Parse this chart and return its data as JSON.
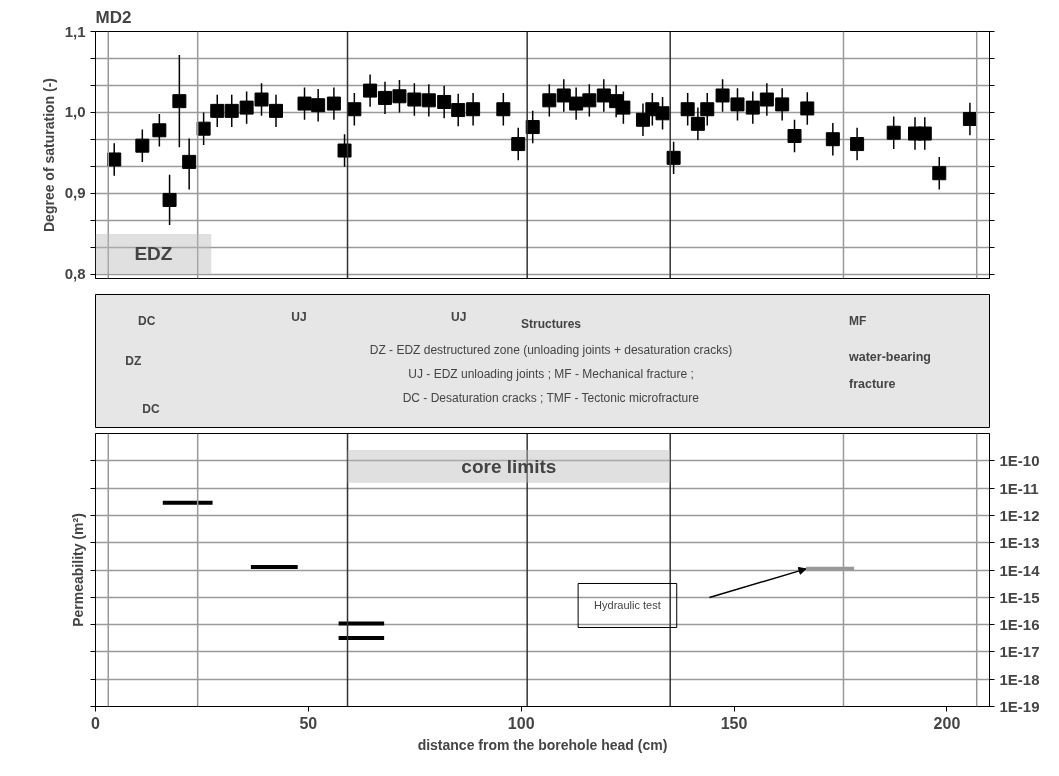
{
  "chart_data": [
    {
      "type": "scatter",
      "title": "MD2",
      "ylabel": "Degree of saturation (-)",
      "marker": "square",
      "grid": "y",
      "tick_labels": "y",
      "xlim": [
        0,
        210
      ],
      "ylim": [
        0.795,
        1.1
      ],
      "yticks": [
        {
          "value": 0.8,
          "label": "0,8"
        },
        {
          "value": 0.8333,
          "label": null
        },
        {
          "value": 0.8667,
          "label": null
        },
        {
          "value": 0.9,
          "label": "0,9"
        },
        {
          "value": 0.9333,
          "label": null
        },
        {
          "value": 0.9667,
          "label": null
        },
        {
          "value": 1.0,
          "label": "1,0"
        },
        {
          "value": 1.0333,
          "label": null
        },
        {
          "value": 1.0667,
          "label": null
        },
        {
          "value": 1.1,
          "label": "1,1"
        }
      ],
      "x": [
        4.4,
        11.0,
        15.0,
        17.4,
        19.7,
        22.0,
        25.4,
        28.6,
        32.0,
        35.5,
        39.0,
        42.4,
        49.1,
        52.3,
        56.0,
        58.5,
        60.8,
        64.5,
        68.0,
        71.4,
        74.9,
        78.3,
        81.9,
        85.2,
        88.7,
        95.8,
        99.3,
        102.7,
        106.6,
        110.0,
        112.9,
        116.0,
        119.4,
        122.3,
        124.0,
        128.6,
        130.8,
        133.2,
        135.8,
        139.1,
        141.5,
        143.7,
        147.3,
        150.8,
        154.4,
        157.7,
        161.3,
        164.2,
        167.2,
        173.2,
        178.9,
        187.5,
        192.5,
        194.8,
        198.2,
        205.4
      ],
      "series": [
        {
          "color": "#000000",
          "values": [
            0.942,
            0.959,
            0.978,
            0.892,
            1.014,
            0.939,
            0.98,
            1.002,
            1.002,
            1.006,
            1.016,
            1.002,
            1.011,
            1.009,
            1.011,
            0.953,
            1.004,
            1.027,
            1.018,
            1.02,
            1.016,
            1.015,
            1.013,
            1.003,
            1.004,
            1.004,
            0.961,
            0.982,
            1.015,
            1.021,
            1.011,
            1.015,
            1.021,
            1.014,
            1.006,
            0.991,
            1.004,
            0.999,
            0.944,
            1.004,
            0.986,
            1.004,
            1.021,
            1.01,
            1.006,
            1.016,
            1.01,
            0.971,
            1.005,
            0.967,
            0.961,
            0.975,
            0.974,
            0.974,
            0.925,
            0.992
          ],
          "errors": [
            0.02,
            0.02,
            0.02,
            0.031,
            [
              0.957,
              1.071
            ],
            [
              0.905,
              0.968
            ],
            0.02,
            0.02,
            0.02,
            0.02,
            0.02,
            0.02,
            0.02,
            0.02,
            0.02,
            0.02,
            0.02,
            0.02,
            0.02,
            0.02,
            0.02,
            0.02,
            0.02,
            0.02,
            0.02,
            0.02,
            0.02,
            0.02,
            0.02,
            0.02,
            0.02,
            0.02,
            0.02,
            0.02,
            0.02,
            0.02,
            0.02,
            0.02,
            0.02,
            0.02,
            0.02,
            0.02,
            0.02,
            0.02,
            0.02,
            0.02,
            0.02,
            0.02,
            0.02,
            0.02,
            0.02,
            0.02,
            0.02,
            0.02,
            0.02,
            0.02
          ]
        }
      ],
      "ref_lines": [
        {
          "axis": "x",
          "value": 3,
          "color": "#999999"
        },
        {
          "axis": "x",
          "value": 24,
          "color": "#999999"
        },
        {
          "axis": "x",
          "value": 59.2,
          "color": "#333333"
        },
        {
          "axis": "x",
          "value": 101.4,
          "color": "#333333"
        },
        {
          "axis": "x",
          "value": 135,
          "color": "#333333"
        },
        {
          "axis": "x",
          "value": 175.7,
          "color": "#999999"
        },
        {
          "axis": "x",
          "value": 207,
          "color": "#999999"
        }
      ],
      "bands": [
        {
          "axis": "x",
          "from": 0,
          "to": 27.2,
          "label": "EDZ"
        }
      ]
    },
    {
      "type": "other",
      "annotations": [
        "DC",
        "DZ",
        "DC",
        "UJ",
        "UJ",
        "MF",
        "Structures",
        "DZ - EDZ destructured zone (unloading joints + desaturation cracks)",
        "UJ - EDZ unloading joints ; MF - Mechanical fracture ;",
        "DC - Desaturation cracks ; TMF - Tectonic microfracture",
        "water-bearing",
        "fracture"
      ]
    },
    {
      "type": "line",
      "xlabel": "distance from the borehole head (cm)",
      "ylabel": "Permeability (m²)",
      "log": "y",
      "grid": "y",
      "xlim": [
        0,
        210
      ],
      "xticks": [
        0,
        50,
        100,
        150,
        200
      ],
      "ylim": [
        1e-19,
        1e-09
      ],
      "yticks": [
        {
          "value": 1e-10,
          "label": "1E-10"
        },
        {
          "value": 1e-11,
          "label": "1E-11"
        },
        {
          "value": 1e-12,
          "label": "1E-12"
        },
        {
          "value": 1e-13,
          "label": "1E-13"
        },
        {
          "value": 1e-14,
          "label": "1E-14"
        },
        {
          "value": 1e-15,
          "label": "1E-15"
        },
        {
          "value": 1e-16,
          "label": "1E-16"
        },
        {
          "value": 1e-17,
          "label": "1E-17"
        },
        {
          "value": 1e-18,
          "label": "1E-18"
        },
        {
          "value": 1e-19,
          "label": "1E-19"
        }
      ],
      "series": [
        {
          "color": "#000000",
          "x": [
            15.8,
            27.5
          ],
          "values": [
            2.9e-12,
            2.9e-12
          ]
        },
        {
          "color": "#000000",
          "x": [
            36.5,
            47.5
          ],
          "values": [
            1.3e-14,
            1.3e-14
          ]
        },
        {
          "color": "#000000",
          "x": [
            57.1,
            67.8
          ],
          "values": [
            1.1e-16,
            1.1e-16
          ]
        },
        {
          "color": "#000000",
          "x": [
            57.1,
            67.8
          ],
          "values": [
            3.2e-17,
            3.2e-17
          ]
        },
        {
          "color": "#999999",
          "x": [
            166.9,
            178.2
          ],
          "values": [
            1.1e-14,
            1.1e-14
          ]
        }
      ],
      "annotations": [
        "Hydraulic test"
      ],
      "ref_lines": [
        {
          "axis": "x",
          "value": 3,
          "color": "#999999"
        },
        {
          "axis": "x",
          "value": 24,
          "color": "#999999"
        },
        {
          "axis": "x",
          "value": 59.2,
          "color": "#333333"
        },
        {
          "axis": "x",
          "value": 101.4,
          "color": "#333333"
        },
        {
          "axis": "x",
          "value": 135,
          "color": "#333333"
        },
        {
          "axis": "x",
          "value": 175.7,
          "color": "#999999"
        },
        {
          "axis": "x",
          "value": 207,
          "color": "#999999"
        }
      ],
      "bands": [
        {
          "axis": "x",
          "from": 59.2,
          "to": 135,
          "label": "core limits"
        }
      ]
    }
  ]
}
